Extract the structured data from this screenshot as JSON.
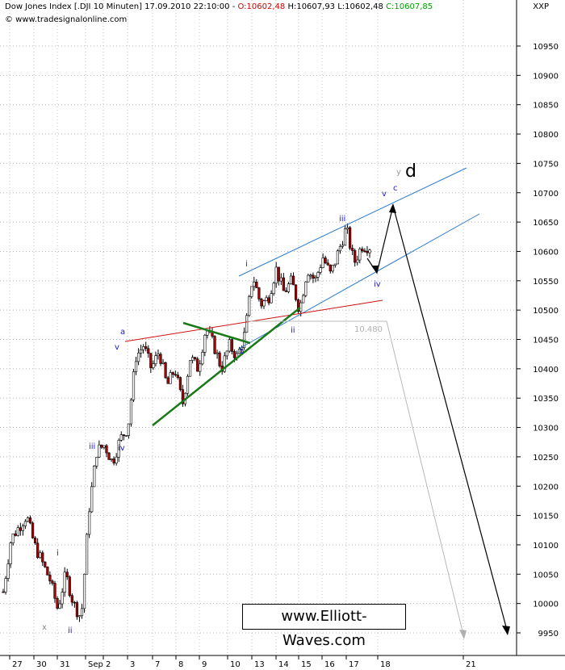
{
  "header": {
    "prefix": "Dow Jones Index [.DJI  10 Minuten] 17.09.2010 22:10:00 - ",
    "open": "O:10602,48",
    "hl": " H:10607,93 L:10602,48 ",
    "close": "C:10607,85",
    "source": "© www.tradesignalonline.com",
    "currency": "XXP"
  },
  "watermark": "www.Elliott-Waves.com",
  "colors": {
    "up_candle": "#ffffff",
    "down_candle": "#b00000",
    "price_line": "#000000",
    "blue_channel": "#2b7bd0",
    "red_line": "#d01010",
    "green_line": "#1a7a1a",
    "projection_gray": "#b0b0b0",
    "wave_label": "#1a1ad0"
  },
  "chart_data": {
    "type": "candlestick",
    "y_axis": {
      "ticks": [
        "10950",
        "10900",
        "10850",
        "10800",
        "10750",
        "10700",
        "10650",
        "10600",
        "10550",
        "10500",
        "10450",
        "10400",
        "10350",
        "10300",
        "10250",
        "10200",
        "10150",
        "10100",
        "10050",
        "10000",
        "9950"
      ],
      "range": [
        9945,
        11010
      ],
      "position": "right"
    },
    "x_axis": {
      "ticks": [
        "27",
        "30",
        "31",
        "Sep",
        "2",
        "3",
        "7",
        "8",
        "9",
        "10",
        "13",
        "14",
        "15",
        "16",
        "17",
        "18",
        "21"
      ]
    },
    "price_path": [
      [
        "Aug 27",
        10020
      ],
      [
        "Aug 27",
        10110
      ],
      [
        "Aug 27",
        10130
      ],
      [
        "Aug 30",
        10150
      ],
      [
        "Aug 30",
        10100
      ],
      [
        "Aug 30",
        10070
      ],
      [
        "Aug 30",
        10040
      ],
      [
        "Aug 31",
        9990
      ],
      [
        "Aug 31",
        10050
      ],
      [
        "Aug 31",
        10000
      ],
      [
        "Aug 31",
        9975
      ],
      [
        "Sep 1",
        10160
      ],
      [
        "Sep 1",
        10260
      ],
      [
        "Sep 1",
        10270
      ],
      [
        "Sep 2",
        10240
      ],
      [
        "Sep 2",
        10280
      ],
      [
        "Sep 2",
        10300
      ],
      [
        "Sep 3",
        10420
      ],
      [
        "Sep 3",
        10440
      ],
      [
        "Sep 3",
        10400
      ],
      [
        "Sep 3",
        10430
      ],
      [
        "Sep 7",
        10370
      ],
      [
        "Sep 7",
        10400
      ],
      [
        "Sep 8",
        10340
      ],
      [
        "Sep 8",
        10420
      ],
      [
        "Sep 8",
        10400
      ],
      [
        "Sep 9",
        10470
      ],
      [
        "Sep 9",
        10440
      ],
      [
        "Sep 9",
        10400
      ],
      [
        "Sep 10",
        10440
      ],
      [
        "Sep 10",
        10420
      ],
      [
        "Sep 10",
        10460
      ],
      [
        "Sep 13",
        10560
      ],
      [
        "Sep 13",
        10510
      ],
      [
        "Sep 13",
        10520
      ],
      [
        "Sep 14",
        10570
      ],
      [
        "Sep 14",
        10530
      ],
      [
        "Sep 14",
        10550
      ],
      [
        "Sep 15",
        10500
      ],
      [
        "Sep 15",
        10570
      ],
      [
        "Sep 15",
        10550
      ],
      [
        "Sep 16",
        10590
      ],
      [
        "Sep 16",
        10560
      ],
      [
        "Sep 16",
        10600
      ],
      [
        "Sep 17",
        10640
      ],
      [
        "Sep 17",
        10580
      ],
      [
        "Sep 17",
        10610
      ],
      [
        "Sep 17",
        10608
      ]
    ],
    "last_close": 10607.85,
    "annotations": {
      "wave_labels": [
        "x",
        "ii",
        "i",
        "iii",
        "iv",
        "v",
        "a",
        "b",
        "i",
        "ii",
        "iii",
        "iv",
        "v",
        "c",
        "y",
        "d"
      ],
      "level_label": "10.480",
      "projection": {
        "from": 10600,
        "peak": 10680,
        "target": 9950,
        "target_date": "Sep 21"
      }
    }
  }
}
